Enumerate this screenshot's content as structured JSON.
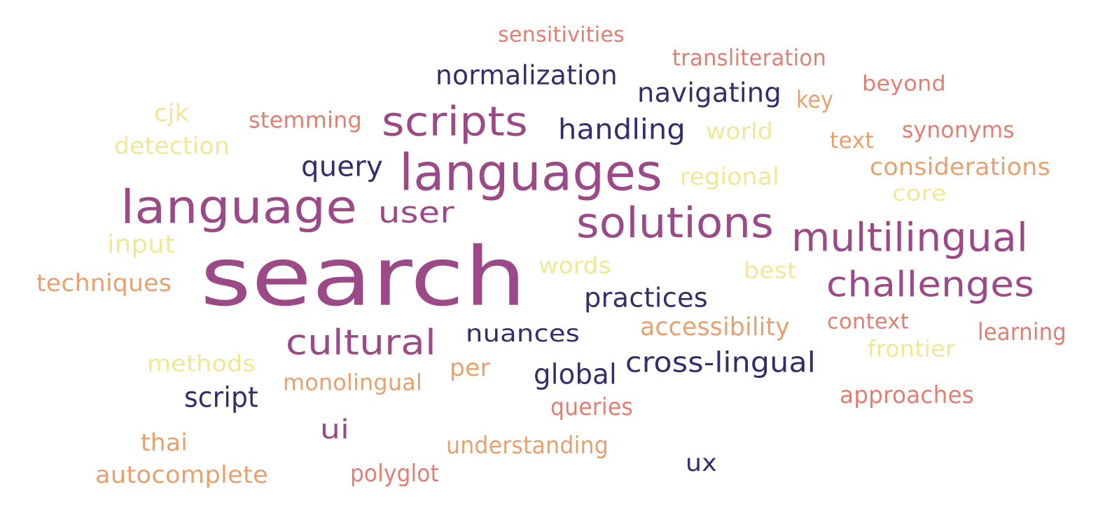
{
  "palette": {
    "magenta": "#9b4a87",
    "navy": "#352d6b",
    "yellow": "#efe896",
    "orange": "#e9a06d",
    "salmon": "#e47e72"
  },
  "words": [
    {
      "text": "search",
      "color": "magenta"
    },
    {
      "text": "languages",
      "color": "magenta"
    },
    {
      "text": "language",
      "color": "magenta"
    },
    {
      "text": "solutions",
      "color": "magenta"
    },
    {
      "text": "scripts",
      "color": "magenta"
    },
    {
      "text": "multilingual",
      "color": "magenta"
    },
    {
      "text": "challenges",
      "color": "magenta"
    },
    {
      "text": "cultural",
      "color": "magenta"
    },
    {
      "text": "user",
      "color": "magenta"
    },
    {
      "text": "ui",
      "color": "magenta"
    },
    {
      "text": "normalization",
      "color": "navy"
    },
    {
      "text": "navigating",
      "color": "navy"
    },
    {
      "text": "handling",
      "color": "navy"
    },
    {
      "text": "query",
      "color": "navy"
    },
    {
      "text": "practices",
      "color": "navy"
    },
    {
      "text": "nuances",
      "color": "navy"
    },
    {
      "text": "cross-lingual",
      "color": "navy"
    },
    {
      "text": "global",
      "color": "navy"
    },
    {
      "text": "script",
      "color": "navy"
    },
    {
      "text": "ux",
      "color": "navy"
    },
    {
      "text": "cjk",
      "color": "yellow"
    },
    {
      "text": "detection",
      "color": "yellow"
    },
    {
      "text": "world",
      "color": "yellow"
    },
    {
      "text": "regional",
      "color": "yellow"
    },
    {
      "text": "core",
      "color": "yellow"
    },
    {
      "text": "input",
      "color": "yellow"
    },
    {
      "text": "words",
      "color": "yellow"
    },
    {
      "text": "best",
      "color": "yellow"
    },
    {
      "text": "frontier",
      "color": "yellow"
    },
    {
      "text": "methods",
      "color": "yellow"
    },
    {
      "text": "key",
      "color": "orange"
    },
    {
      "text": "text",
      "color": "orange"
    },
    {
      "text": "considerations",
      "color": "orange"
    },
    {
      "text": "techniques",
      "color": "orange"
    },
    {
      "text": "accessibility",
      "color": "orange"
    },
    {
      "text": "per",
      "color": "orange"
    },
    {
      "text": "monolingual",
      "color": "orange"
    },
    {
      "text": "thai",
      "color": "orange"
    },
    {
      "text": "understanding",
      "color": "orange"
    },
    {
      "text": "autocomplete",
      "color": "orange"
    },
    {
      "text": "sensitivities",
      "color": "salmon"
    },
    {
      "text": "transliteration",
      "color": "salmon"
    },
    {
      "text": "beyond",
      "color": "salmon"
    },
    {
      "text": "stemming",
      "color": "salmon"
    },
    {
      "text": "synonyms",
      "color": "salmon"
    },
    {
      "text": "context",
      "color": "salmon"
    },
    {
      "text": "learning",
      "color": "salmon"
    },
    {
      "text": "approaches",
      "color": "salmon"
    },
    {
      "text": "queries",
      "color": "salmon"
    },
    {
      "text": "polyglot",
      "color": "salmon"
    }
  ]
}
